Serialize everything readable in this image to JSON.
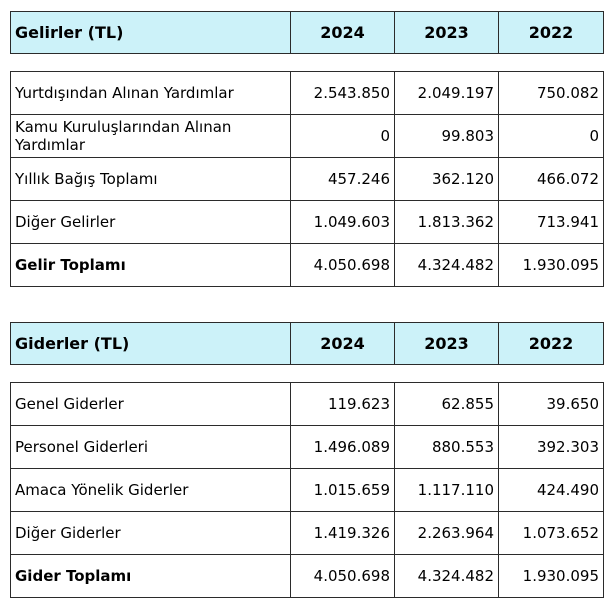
{
  "income": {
    "header": {
      "label": "Gelirler (TL)",
      "years": [
        "2024",
        "2023",
        "2022"
      ]
    },
    "rows": [
      {
        "label": "Yurtdışından Alınan Yardımlar",
        "values": [
          "2.543.850",
          "2.049.197",
          "750.082"
        ]
      },
      {
        "label": "Kamu Kuruluşlarından Alınan Yardımlar",
        "values": [
          "0",
          "99.803",
          "0"
        ]
      },
      {
        "label": "Yıllık Bağış Toplamı",
        "values": [
          "457.246",
          "362.120",
          "466.072"
        ]
      },
      {
        "label": "Diğer Gelirler",
        "values": [
          "1.049.603",
          "1.813.362",
          "713.941"
        ]
      }
    ],
    "total": {
      "label": "Gelir Toplamı",
      "values": [
        "4.050.698",
        "4.324.482",
        "1.930.095"
      ]
    }
  },
  "expenses": {
    "header": {
      "label": "Giderler (TL)",
      "years": [
        "2024",
        "2023",
        "2022"
      ]
    },
    "rows": [
      {
        "label": "Genel Giderler",
        "values": [
          "119.623",
          "62.855",
          "39.650"
        ]
      },
      {
        "label": "Personel Giderleri",
        "values": [
          "1.496.089",
          "880.553",
          "392.303"
        ]
      },
      {
        "label": "Amaca Yönelik Giderler",
        "values": [
          "1.015.659",
          "1.117.110",
          "424.490"
        ]
      },
      {
        "label": "Diğer Giderler",
        "values": [
          "1.419.326",
          "2.263.964",
          "1.073.652"
        ]
      }
    ],
    "total": {
      "label": "Gider Toplamı",
      "values": [
        "4.050.698",
        "4.324.482",
        "1.930.095"
      ]
    }
  },
  "colors": {
    "header_bg": "#ccf2f9",
    "border": "#2b2b2b"
  }
}
